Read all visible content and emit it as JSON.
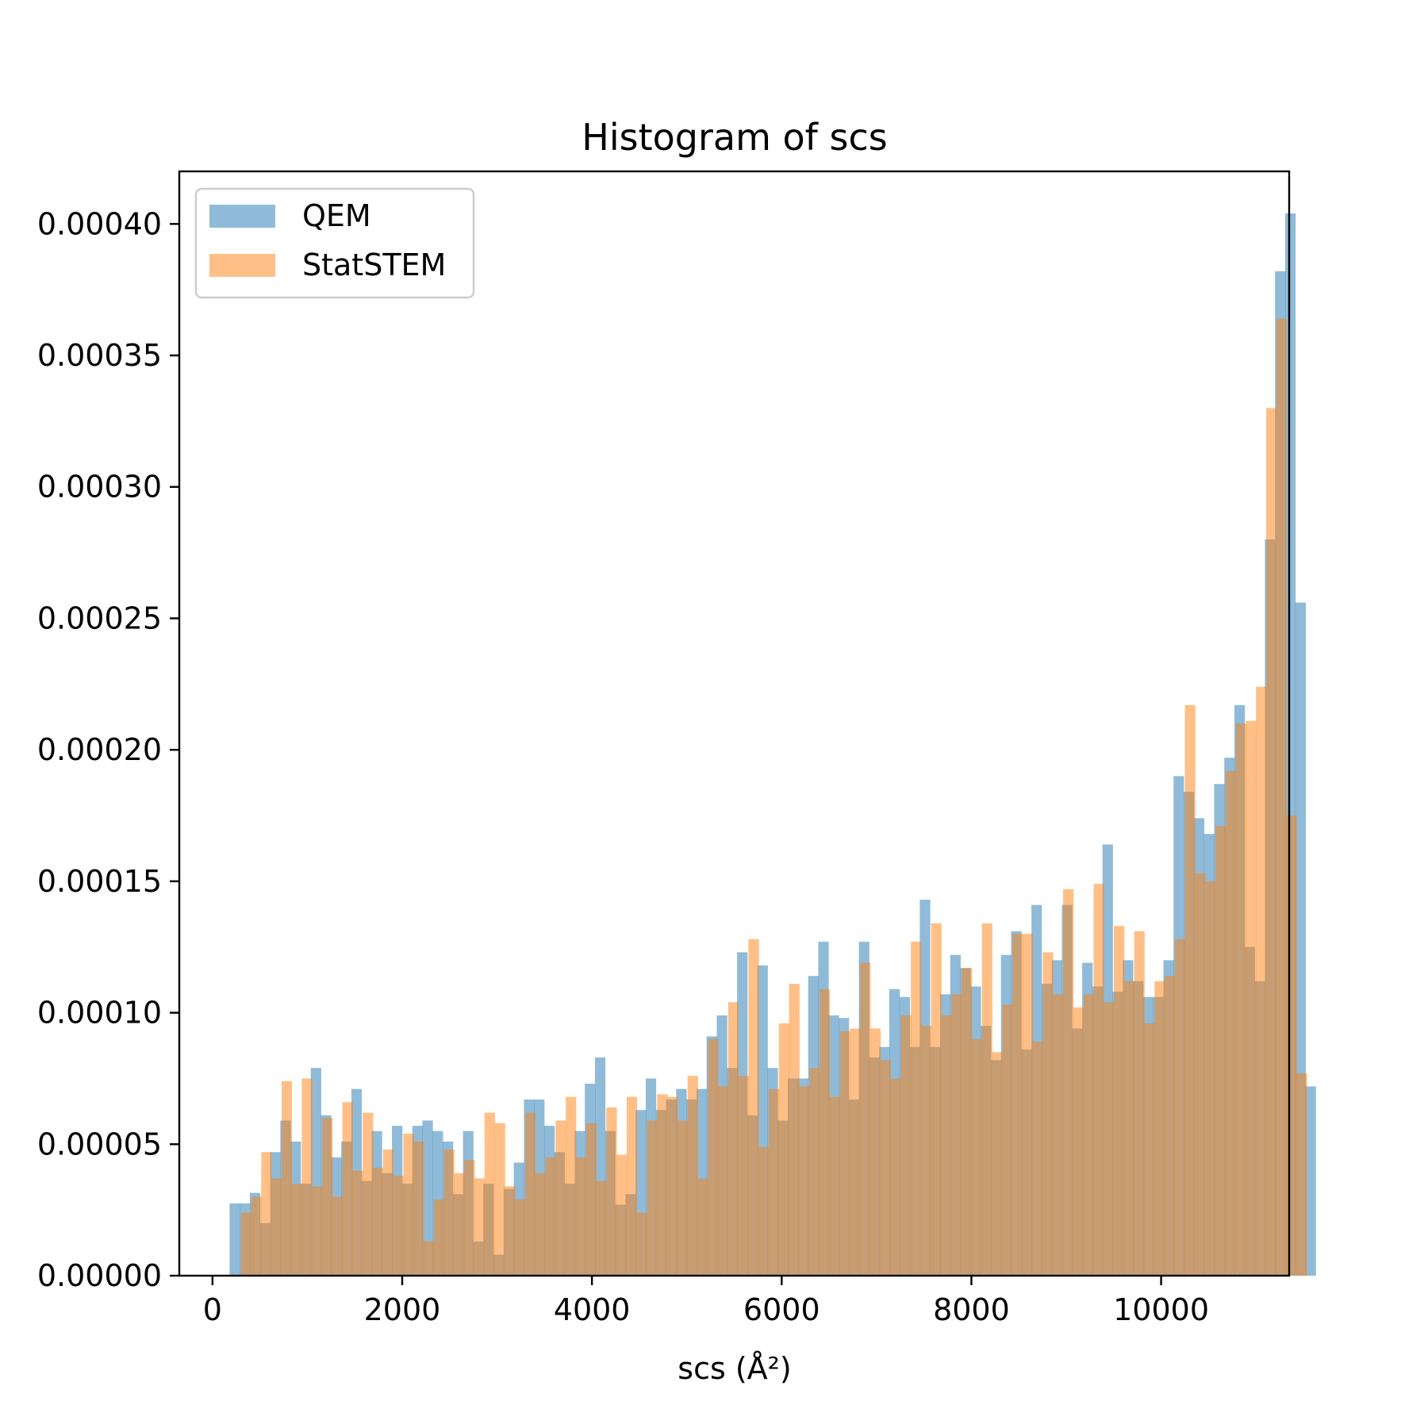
{
  "chart_data": {
    "type": "histogram",
    "title": "Histogram of scs",
    "xlabel": "scs (Å²)",
    "ylabel": "",
    "xlim": [
      -350,
      11350
    ],
    "ylim": [
      0,
      0.00042
    ],
    "xticks": [
      0,
      2000,
      4000,
      6000,
      8000,
      10000
    ],
    "xtick_labels": [
      "0",
      "2000",
      "4000",
      "6000",
      "8000",
      "10000"
    ],
    "yticks": [
      0,
      5e-05,
      0.0001,
      0.00015,
      0.0002,
      0.00025,
      0.0003,
      0.00035,
      0.0004
    ],
    "ytick_labels": [
      "0.00000",
      "0.00005",
      "0.00010",
      "0.00015",
      "0.00020",
      "0.00025",
      "0.00030",
      "0.00035",
      "0.00040"
    ],
    "grid": false,
    "legend_position": "top-left",
    "series": [
      {
        "name": "QEM",
        "color": "#1f77b4",
        "opacity": 0.5,
        "bin_start": 180,
        "bin_width": 107,
        "values": [
          2.75e-05,
          2.75e-05,
          3.15e-05,
          2e-05,
          4.7e-05,
          5.9e-05,
          5.1e-05,
          3.5e-05,
          7.9e-05,
          6.1e-05,
          4.5e-05,
          5.1e-05,
          7.1e-05,
          3.6e-05,
          5.5e-05,
          3.9e-05,
          5.7e-05,
          3.5e-05,
          5.7e-05,
          5.9e-05,
          5.5e-05,
          5.1e-05,
          3.1e-05,
          5.5e-05,
          1.3e-05,
          3.5e-05,
          8e-06,
          3.3e-05,
          4.3e-05,
          6.7e-05,
          6.7e-05,
          5.7e-05,
          4.7e-05,
          3.5e-05,
          5.5e-05,
          7.3e-05,
          8.3e-05,
          5.5e-05,
          2.7e-05,
          3.1e-05,
          6.3e-05,
          7.5e-05,
          6.3e-05,
          6.7e-05,
          7.1e-05,
          6.7e-05,
          7.1e-05,
          9.1e-05,
          9.9e-05,
          7.9e-05,
          0.000123,
          6.1e-05,
          0.000118,
          7.9e-05,
          5.9e-05,
          7.5e-05,
          7.5e-05,
          0.000114,
          0.000127,
          9.9e-05,
          9.8e-05,
          6.7e-05,
          0.000127,
          8.3e-05,
          8.7e-05,
          0.000109,
          0.000106,
          8.7e-05,
          0.000143,
          8.7e-05,
          0.000107,
          0.000122,
          0.000117,
          0.00011,
          9.5e-05,
          8.2e-05,
          0.000122,
          0.000131,
          8.6e-05,
          0.000141,
          0.000111,
          0.00012,
          0.000141,
          9.4e-05,
          0.000119,
          0.00011,
          0.000164,
          0.000108,
          0.00012,
          0.000112,
          0.000106,
          0.000106,
          0.00012,
          0.00019,
          0.000184,
          0.000174,
          0.000168,
          0.000187,
          0.000197,
          0.000217,
          0.000125,
          0.000112,
          0.00028,
          0.000382,
          0.000404,
          0.000256,
          7.2e-05
        ]
      },
      {
        "name": "StatSTEM",
        "color": "#ff7f0e",
        "opacity": 0.5,
        "bin_start": 300,
        "bin_width": 107,
        "values": [
          2.4e-05,
          3e-05,
          4.7e-05,
          3.7e-05,
          7.4e-05,
          3.5e-05,
          7.5e-05,
          3.4e-05,
          6e-05,
          3e-05,
          6.6e-05,
          4e-05,
          6.2e-05,
          4.1e-05,
          4.8e-05,
          3.8e-05,
          5.4e-05,
          5.1e-05,
          1.3e-05,
          2.9e-05,
          4.8e-05,
          3.9e-05,
          4.4e-05,
          3.7e-05,
          6.2e-05,
          5.8e-05,
          3.4e-05,
          2.9e-05,
          6.2e-05,
          3.9e-05,
          4.5e-05,
          5.9e-05,
          6.8e-05,
          4.5e-05,
          5.8e-05,
          3.6e-05,
          6.4e-05,
          4.6e-05,
          6.8e-05,
          2.4e-05,
          5.9e-05,
          6.9e-05,
          6.8e-05,
          5.9e-05,
          7.6e-05,
          3.7e-05,
          9e-05,
          7.2e-05,
          0.000104,
          7.6e-05,
          0.000128,
          4.9e-05,
          7.1e-05,
          9.6e-05,
          0.000111,
          7.2e-05,
          7.9e-05,
          0.000109,
          6.8e-05,
          9.3e-05,
          9.4e-05,
          0.000119,
          9.4e-05,
          8.2e-05,
          7.5e-05,
          9.9e-05,
          0.000127,
          9.5e-05,
          0.000134,
          9.9e-05,
          0.000107,
          0.000117,
          9e-05,
          0.000134,
          8.5e-05,
          0.000103,
          0.00013,
          0.00013,
          8.9e-05,
          0.000123,
          0.000107,
          0.000147,
          0.000102,
          0.000107,
          0.000149,
          0.000104,
          0.000133,
          0.000112,
          0.000131,
          9.6e-05,
          0.000112,
          0.000114,
          0.000128,
          0.000217,
          0.000153,
          0.00015,
          0.000171,
          0.000192,
          0.00021,
          0.000211,
          0.000224,
          0.00033,
          0.000364,
          0.000175,
          7.7e-05
        ]
      }
    ]
  }
}
